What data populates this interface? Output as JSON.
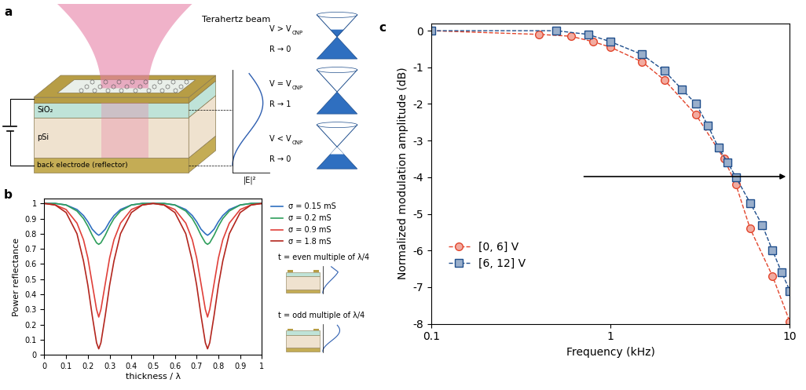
{
  "panel_labels": [
    "a",
    "b",
    "c"
  ],
  "diagram": {
    "beam_label": "Terahertz beam",
    "layers": [
      "SiO₂",
      "pSi",
      "back electrode (reflector)"
    ],
    "field_label": "|E|²",
    "states": [
      {
        "condition": "V > V",
        "subscript": "CNP",
        "reflectance": "R → 0"
      },
      {
        "condition": "V = V",
        "subscript": "CNP",
        "reflectance": "R → 1"
      },
      {
        "condition": "V < V",
        "subscript": "CNP",
        "reflectance": "R → 0"
      }
    ]
  },
  "chart_data": [
    {
      "type": "line",
      "x_label": "thickness / λ",
      "y_label": "Power reflectance",
      "annotations": [
        "t = even multiple of λ/4",
        "t = odd multiple of λ/4"
      ],
      "x": [
        0,
        0.05,
        0.1,
        0.15,
        0.18,
        0.2,
        0.22,
        0.24,
        0.25,
        0.26,
        0.28,
        0.3,
        0.32,
        0.35,
        0.4,
        0.45,
        0.5,
        0.55,
        0.6,
        0.65,
        0.68,
        0.7,
        0.72,
        0.74,
        0.75,
        0.76,
        0.78,
        0.8,
        0.82,
        0.85,
        0.9,
        0.95,
        1
      ],
      "series": [
        {
          "name": "σ = 0.15 mS",
          "color": "#2f6fc0",
          "values": [
            1,
            1,
            0.99,
            0.96,
            0.92,
            0.88,
            0.83,
            0.8,
            0.79,
            0.8,
            0.83,
            0.88,
            0.92,
            0.96,
            0.99,
            1,
            1,
            1,
            0.99,
            0.96,
            0.92,
            0.88,
            0.83,
            0.8,
            0.79,
            0.8,
            0.83,
            0.88,
            0.92,
            0.96,
            0.99,
            1,
            1
          ]
        },
        {
          "name": "σ = 0.2 mS",
          "color": "#2e9e5b",
          "values": [
            1,
            1,
            0.99,
            0.95,
            0.9,
            0.85,
            0.79,
            0.74,
            0.73,
            0.74,
            0.79,
            0.85,
            0.9,
            0.95,
            0.99,
            1,
            1,
            1,
            0.99,
            0.95,
            0.9,
            0.85,
            0.79,
            0.74,
            0.73,
            0.74,
            0.79,
            0.85,
            0.9,
            0.95,
            0.99,
            1,
            1
          ]
        },
        {
          "name": "σ = 0.9 mS",
          "color": "#e0403a",
          "values": [
            1,
            0.99,
            0.96,
            0.87,
            0.76,
            0.64,
            0.47,
            0.3,
            0.25,
            0.3,
            0.47,
            0.64,
            0.76,
            0.87,
            0.96,
            0.99,
            1,
            0.99,
            0.96,
            0.87,
            0.76,
            0.64,
            0.47,
            0.3,
            0.25,
            0.3,
            0.47,
            0.64,
            0.76,
            0.87,
            0.96,
            0.99,
            1
          ]
        },
        {
          "name": "σ = 1.8 mS",
          "color": "#b3261e",
          "values": [
            1,
            0.99,
            0.94,
            0.8,
            0.62,
            0.46,
            0.26,
            0.08,
            0.04,
            0.08,
            0.26,
            0.46,
            0.62,
            0.8,
            0.94,
            0.99,
            1,
            0.99,
            0.94,
            0.8,
            0.62,
            0.46,
            0.26,
            0.08,
            0.04,
            0.08,
            0.26,
            0.46,
            0.62,
            0.8,
            0.94,
            0.99,
            1
          ]
        }
      ],
      "xlim": [
        0,
        1
      ],
      "xticks": [
        0,
        0.1,
        0.2,
        0.3,
        0.4,
        0.5,
        0.6,
        0.7,
        0.8,
        0.9,
        1
      ],
      "ylim": [
        0,
        1.03
      ],
      "yticks": [
        0,
        0.1,
        0.2,
        0.3,
        0.4,
        0.5,
        0.6,
        0.7,
        0.8,
        0.9,
        1
      ],
      "legend": "right"
    },
    {
      "type": "line",
      "x_label": "Frequency (kHz)",
      "y_label": "Normalized modulation amplitude (dB)",
      "log": "x",
      "series": [
        {
          "name": "[0, 6] V",
          "color": "#e2452c",
          "marker": "circle",
          "line_style": "dashed",
          "x": [
            0.1,
            0.4,
            0.6,
            0.8,
            1,
            1.5,
            2,
            3,
            4.3,
            5,
            6,
            8,
            10
          ],
          "values": [
            0,
            -0.1,
            -0.15,
            -0.3,
            -0.45,
            -0.85,
            -1.35,
            -2.3,
            -3.5,
            -4.2,
            -5.4,
            -6.7,
            -7.95
          ]
        },
        {
          "name": "[6, 12] V",
          "color": "#1f4e8c",
          "marker": "square",
          "line_style": "dashed",
          "x": [
            0.1,
            0.5,
            0.75,
            1,
            1.5,
            2,
            2.5,
            3,
            3.5,
            4,
            4.5,
            5,
            6,
            7,
            8,
            9,
            10
          ],
          "values": [
            0,
            0,
            -0.1,
            -0.3,
            -0.65,
            -1.1,
            -1.6,
            -2.0,
            -2.6,
            -3.2,
            -3.6,
            -4.0,
            -4.7,
            -5.3,
            -6.0,
            -6.6,
            -7.1
          ]
        }
      ],
      "xlim": [
        0.1,
        10
      ],
      "xticks": [
        0.1,
        1,
        10
      ],
      "ylim": [
        -8,
        0.2
      ],
      "yticks": [
        0,
        -1,
        -2,
        -3,
        -4,
        -5,
        -6,
        -7,
        -8
      ],
      "legend": "lower left"
    }
  ]
}
